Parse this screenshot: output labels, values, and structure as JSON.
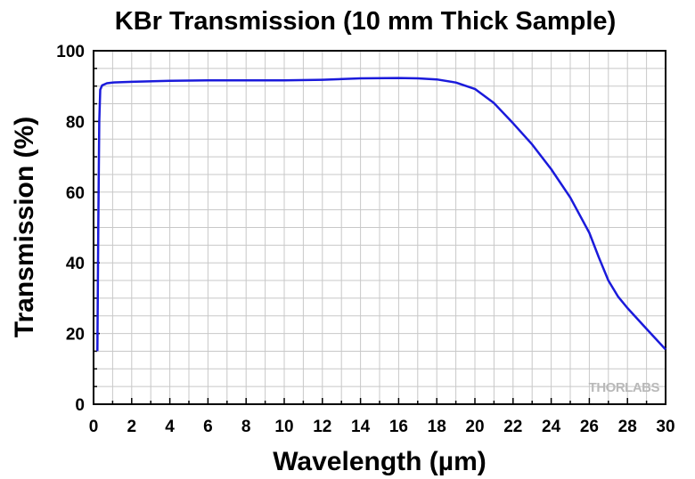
{
  "chart_data": {
    "type": "line",
    "title": "KBr Transmission (10 mm Thick Sample)",
    "xlabel": "Wavelength (µm)",
    "ylabel": "Transmission (%)",
    "xlim": [
      0,
      30
    ],
    "ylim": [
      0,
      100
    ],
    "xticks": [
      "0",
      "2",
      "4",
      "6",
      "8",
      "10",
      "12",
      "14",
      "16",
      "18",
      "20",
      "22",
      "24",
      "26",
      "28",
      "30"
    ],
    "yticks": [
      "0",
      "20",
      "40",
      "60",
      "80",
      "100"
    ],
    "grid": true,
    "series": [
      {
        "color": "#1a1adb",
        "points": [
          [
            0.2,
            15
          ],
          [
            0.25,
            50
          ],
          [
            0.3,
            80
          ],
          [
            0.35,
            89
          ],
          [
            0.45,
            90.2
          ],
          [
            0.7,
            90.8
          ],
          [
            1,
            91.0
          ],
          [
            2,
            91.2
          ],
          [
            4,
            91.5
          ],
          [
            6,
            91.6
          ],
          [
            8,
            91.6
          ],
          [
            10,
            91.6
          ],
          [
            12,
            91.8
          ],
          [
            14,
            92.2
          ],
          [
            16,
            92.3
          ],
          [
            17,
            92.2
          ],
          [
            18,
            91.9
          ],
          [
            19,
            91.0
          ],
          [
            20,
            89.2
          ],
          [
            21,
            85.2
          ],
          [
            22,
            79.5
          ],
          [
            23,
            73.5
          ],
          [
            24,
            66.5
          ],
          [
            25,
            58.5
          ],
          [
            26,
            48.5
          ],
          [
            26.5,
            41.5
          ],
          [
            27,
            35.0
          ],
          [
            27.5,
            30.5
          ],
          [
            28,
            27.2
          ],
          [
            29,
            21.3
          ],
          [
            30,
            15.5
          ]
        ]
      }
    ]
  },
  "watermark": {
    "text": "THORLABS",
    "color": "#b9b9b9"
  }
}
